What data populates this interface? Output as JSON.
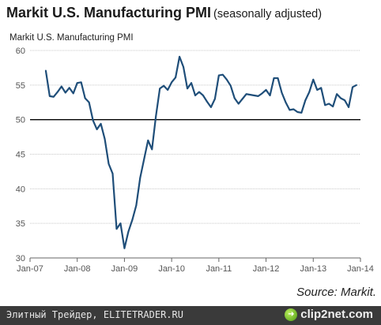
{
  "title": {
    "main": "Markit U.S. Manufacturing PMI",
    "sub": "(seasonally adjusted)"
  },
  "source": "Source: Markit.",
  "footer": {
    "left_text": "Элитный Трейдер, ELITETRADER.RU",
    "logo_text": "clip2net.com",
    "logo_icon": "clip2net-logo-icon"
  },
  "colors": {
    "line": "#1f4e79",
    "reference_line": "#000000",
    "grid": "#c8c8c8",
    "footer_bg": "#3a3a3a",
    "logo_green": "#6dbb1e"
  },
  "chart_data": {
    "type": "line",
    "title": "Markit U.S. Manufacturing PMI",
    "ylabel": "Markit U.S. Manufacturing PMI",
    "xlabel": "",
    "ylim": [
      30,
      60
    ],
    "xlim": [
      2007.0,
      2014.0
    ],
    "yticks": [
      "30",
      "35",
      "40",
      "45",
      "50",
      "55",
      "60"
    ],
    "xticks": [
      "Jan-07",
      "Jan-08",
      "Jan-09",
      "Jan-10",
      "Jan-11",
      "Jan-12",
      "Jan-13",
      "Jan-14"
    ],
    "grid": true,
    "reference_line": 50,
    "series": [
      {
        "x": [
          "2007-05",
          "2007-06",
          "2007-07",
          "2007-08",
          "2007-09",
          "2007-10",
          "2007-11",
          "2007-12",
          "2008-01",
          "2008-02",
          "2008-03",
          "2008-04",
          "2008-05",
          "2008-06",
          "2008-07",
          "2008-08",
          "2008-09",
          "2008-10",
          "2008-11",
          "2008-12",
          "2009-01",
          "2009-02",
          "2009-03",
          "2009-04",
          "2009-05",
          "2009-06",
          "2009-07",
          "2009-08",
          "2009-09",
          "2009-10",
          "2009-11",
          "2009-12",
          "2010-01",
          "2010-02",
          "2010-03",
          "2010-04",
          "2010-05",
          "2010-06",
          "2010-07",
          "2010-08",
          "2010-09",
          "2010-10",
          "2010-11",
          "2010-12",
          "2011-01",
          "2011-02",
          "2011-03",
          "2011-04",
          "2011-05",
          "2011-06",
          "2011-07",
          "2011-08",
          "2011-09",
          "2011-10",
          "2011-11",
          "2011-12",
          "2012-01",
          "2012-02",
          "2012-03",
          "2012-04",
          "2012-05",
          "2012-06",
          "2012-07",
          "2012-08",
          "2012-09",
          "2012-10",
          "2012-11",
          "2012-12",
          "2013-01",
          "2013-02",
          "2013-03",
          "2013-04",
          "2013-05",
          "2013-06",
          "2013-07",
          "2013-08",
          "2013-09",
          "2013-10",
          "2013-11",
          "2013-12"
        ],
        "values": [
          57.1,
          53.4,
          53.3,
          54.0,
          54.8,
          53.9,
          54.6,
          53.8,
          55.3,
          55.4,
          53.1,
          52.5,
          49.9,
          48.6,
          49.4,
          47.2,
          43.6,
          42.2,
          34.2,
          35.0,
          31.4,
          33.8,
          35.5,
          37.6,
          41.6,
          44.3,
          47.0,
          45.7,
          50.5,
          54.5,
          54.9,
          54.3,
          55.4,
          56.1,
          59.1,
          57.6,
          54.5,
          55.3,
          53.5,
          54.0,
          53.5,
          52.6,
          51.8,
          53.0,
          56.4,
          56.5,
          55.8,
          54.9,
          53.1,
          52.3,
          53.0,
          53.7,
          53.6,
          53.5,
          53.4,
          53.8,
          54.3,
          53.5,
          56.0,
          56.0,
          53.9,
          52.5,
          51.4,
          51.5,
          51.1,
          51.0,
          52.8,
          54.0,
          55.8,
          54.3,
          54.6,
          52.1,
          52.3,
          51.9,
          53.7,
          53.1,
          52.8,
          51.8,
          54.7,
          55.0
        ]
      }
    ]
  }
}
